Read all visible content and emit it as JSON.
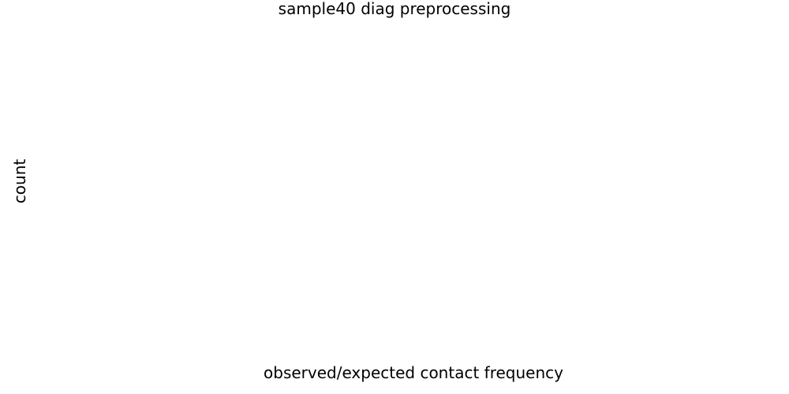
{
  "chart_data": {
    "type": "bar",
    "title": "sample40 diag preprocessing",
    "xlabel": "observed/expected contact frequency",
    "ylabel": "count",
    "categories": [],
    "values": [],
    "series": [],
    "grid": false,
    "legend": "none",
    "axis_lines": false
  }
}
